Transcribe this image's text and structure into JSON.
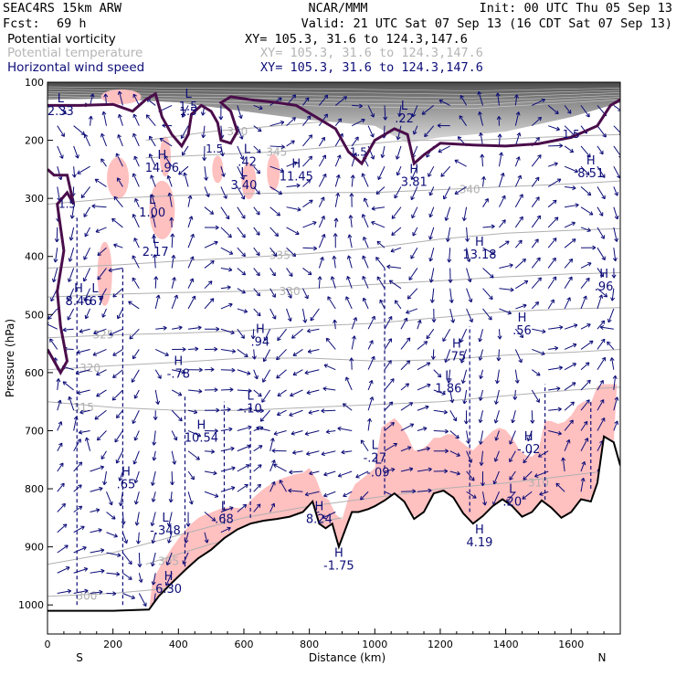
{
  "header": {
    "model": "SEAC4RS 15km ARW",
    "org": "NCAR/MMM",
    "init": "Init: 00 UTC Thu 05 Sep 13",
    "fcst_label": "Fcst:",
    "fcst_value": "69 h",
    "valid": "Valid: 21 UTC Sat 07 Sep 13 (16 CDT Sat 07 Sep 13)"
  },
  "legend": [
    {
      "name": "Potential vorticity",
      "xy": "XY= 105.3, 31.6 to 124.3,147.6",
      "color": "#000000"
    },
    {
      "name": "Potential temperature",
      "xy": "XY= 105.3, 31.6 to 124.3,147.6",
      "color": "#b5b5b5"
    },
    {
      "name": "Horizontal wind speed",
      "xy": "XY= 105.3, 31.6 to 124.3,147.6",
      "color": "#0d0d78"
    }
  ],
  "chart_data": {
    "type": "cross-section",
    "xlabel": "Distance (km)",
    "ylabel": "Pressure (hPa)",
    "xlim": [
      0,
      1750
    ],
    "ylim": [
      1050,
      100
    ],
    "x_ticks": [
      0,
      200,
      400,
      600,
      800,
      1000,
      1200,
      1400,
      1600
    ],
    "y_ticks": [
      100,
      200,
      300,
      400,
      500,
      600,
      700,
      800,
      900,
      1000
    ],
    "endpoints": {
      "left": "S",
      "right": "N"
    },
    "colors": {
      "pv": "#4a0d4a",
      "theta": "#b0b0b0",
      "wind": "#0d0d78",
      "shade": "#ffc0c0",
      "terrain": "#000000"
    },
    "terrain_surface": [
      [
        0,
        1010
      ],
      [
        100,
        1010
      ],
      [
        200,
        1010
      ],
      [
        310,
        1008
      ],
      [
        340,
        985
      ],
      [
        380,
        962
      ],
      [
        420,
        940
      ],
      [
        460,
        920
      ],
      [
        500,
        905
      ],
      [
        540,
        885
      ],
      [
        580,
        870
      ],
      [
        620,
        860
      ],
      [
        660,
        855
      ],
      [
        700,
        852
      ],
      [
        740,
        848
      ],
      [
        780,
        840
      ],
      [
        810,
        822
      ],
      [
        830,
        860
      ],
      [
        850,
        868
      ],
      [
        870,
        860
      ],
      [
        890,
        900
      ],
      [
        910,
        870
      ],
      [
        930,
        840
      ],
      [
        950,
        840
      ],
      [
        980,
        835
      ],
      [
        1000,
        830
      ],
      [
        1030,
        820
      ],
      [
        1060,
        808
      ],
      [
        1090,
        822
      ],
      [
        1120,
        852
      ],
      [
        1150,
        840
      ],
      [
        1180,
        808
      ],
      [
        1210,
        803
      ],
      [
        1240,
        815
      ],
      [
        1270,
        842
      ],
      [
        1300,
        860
      ],
      [
        1330,
        847
      ],
      [
        1360,
        830
      ],
      [
        1390,
        818
      ],
      [
        1420,
        830
      ],
      [
        1450,
        848
      ],
      [
        1480,
        840
      ],
      [
        1510,
        820
      ],
      [
        1540,
        833
      ],
      [
        1570,
        850
      ],
      [
        1600,
        840
      ],
      [
        1630,
        818
      ],
      [
        1660,
        822
      ],
      [
        1680,
        790
      ],
      [
        1700,
        710
      ],
      [
        1730,
        720
      ],
      [
        1750,
        760
      ]
    ],
    "pv_contour_value": "1.5",
    "theta_contours": [
      {
        "label": "300",
        "p": [
          [
            0,
            985
          ],
          [
            200,
            980
          ],
          [
            400,
            970
          ],
          [
            600,
            950
          ]
        ],
        "label_at": [
          120,
          985
        ]
      },
      {
        "label": "305",
        "p": [
          [
            300,
            930
          ],
          [
            500,
            895
          ],
          [
            700,
            870
          ],
          [
            900,
            850
          ]
        ],
        "label_at": [
          370,
          925
        ]
      },
      {
        "label": "310",
        "p": [
          [
            0,
            930
          ],
          [
            200,
            910
          ],
          [
            400,
            880
          ],
          [
            600,
            850
          ],
          [
            800,
            830
          ],
          [
            1000,
            815
          ],
          [
            1200,
            800
          ],
          [
            1400,
            790
          ],
          [
            1700,
            770
          ]
        ],
        "label_at": [
          1500,
          790
        ]
      },
      {
        "label": "315",
        "p": [
          [
            0,
            650
          ],
          [
            200,
            660
          ],
          [
            400,
            665
          ],
          [
            600,
            665
          ],
          [
            800,
            660
          ],
          [
            1000,
            655
          ],
          [
            1200,
            650
          ],
          [
            1400,
            640
          ],
          [
            1600,
            630
          ],
          [
            1750,
            625
          ]
        ],
        "label_at": [
          110,
          660
        ]
      },
      {
        "label": "320",
        "p": [
          [
            0,
            595
          ],
          [
            200,
            588
          ],
          [
            400,
            582
          ],
          [
            600,
            575
          ],
          [
            800,
            575
          ],
          [
            1000,
            580
          ],
          [
            1200,
            578
          ],
          [
            1400,
            570
          ],
          [
            1600,
            565
          ],
          [
            1750,
            560
          ]
        ],
        "label_at": [
          130,
          592
        ]
      },
      {
        "label": "325",
        "p": [
          [
            0,
            540
          ],
          [
            200,
            535
          ],
          [
            400,
            532
          ],
          [
            600,
            528
          ],
          [
            800,
            520
          ],
          [
            1000,
            515
          ],
          [
            1200,
            505
          ],
          [
            1400,
            495
          ],
          [
            1600,
            490
          ],
          [
            1750,
            488
          ]
        ],
        "label_at": [
          170,
          535
        ]
      },
      {
        "label": "330",
        "p": [
          [
            0,
            470
          ],
          [
            200,
            465
          ],
          [
            400,
            462
          ],
          [
            600,
            460
          ],
          [
            800,
            455
          ],
          [
            1000,
            448
          ],
          [
            1200,
            442
          ],
          [
            1400,
            435
          ],
          [
            1600,
            430
          ],
          [
            1750,
            428
          ]
        ],
        "label_at": [
          740,
          460
        ]
      },
      {
        "label": "335",
        "p": [
          [
            0,
            420
          ],
          [
            200,
            415
          ],
          [
            400,
            408
          ],
          [
            600,
            402
          ],
          [
            800,
            395
          ],
          [
            1000,
            385
          ],
          [
            1200,
            370
          ],
          [
            1400,
            360
          ],
          [
            1600,
            355
          ],
          [
            1750,
            352
          ]
        ],
        "label_at": [
          710,
          398
        ]
      },
      {
        "label": "340",
        "p": [
          [
            0,
            310
          ],
          [
            200,
            300
          ],
          [
            400,
            295
          ],
          [
            600,
            292
          ],
          [
            800,
            290
          ],
          [
            1000,
            290
          ],
          [
            1200,
            285
          ],
          [
            1400,
            280
          ],
          [
            1600,
            275
          ],
          [
            1750,
            270
          ]
        ],
        "label_at": [
          1290,
          285
        ]
      },
      {
        "label": "345",
        "p": [
          [
            300,
            230
          ],
          [
            500,
            225
          ],
          [
            700,
            220
          ],
          [
            900,
            210
          ],
          [
            1100,
            200
          ],
          [
            1300,
            200
          ],
          [
            1500,
            195
          ],
          [
            1750,
            190
          ]
        ],
        "label_at": [
          700,
          220
        ]
      },
      {
        "label": "350",
        "p": [
          [
            300,
            200
          ],
          [
            500,
            185
          ],
          [
            700,
            175
          ],
          [
            900,
            165
          ],
          [
            1100,
            155
          ]
        ],
        "label_at": [
          580,
          185
        ]
      }
    ],
    "markers": [
      {
        "type": "L",
        "value": "2.33",
        "x": 40,
        "p": 138
      },
      {
        "type": "L",
        "value": ".22",
        "x": 1090,
        "p": 150
      },
      {
        "type": "L",
        "value": "1.5",
        "x": 430,
        "p": 130
      },
      {
        "type": "H",
        "value": "14.96",
        "x": 350,
        "p": 235
      },
      {
        "type": "L",
        "value": ".42",
        "x": 610,
        "p": 225
      },
      {
        "type": "L",
        "value": "3.40",
        "x": 600,
        "p": 265
      },
      {
        "type": "H",
        "value": "11.45",
        "x": 760,
        "p": 250
      },
      {
        "type": "L",
        "value": "1.00",
        "x": 320,
        "p": 312
      },
      {
        "type": "L",
        "value": "2.17",
        "x": 330,
        "p": 380
      },
      {
        "type": "H",
        "value": "3.81",
        "x": 1120,
        "p": 260
      },
      {
        "type": "H",
        "value": "8.51",
        "x": 1660,
        "p": 245
      },
      {
        "type": "H",
        "value": "13.18",
        "x": 1320,
        "p": 385
      },
      {
        "type": "H",
        "value": ".96",
        "x": 1700,
        "p": 440
      },
      {
        "type": "H",
        "value": "8.46",
        "x": 95,
        "p": 465
      },
      {
        "type": "L",
        "value": ".67",
        "x": 145,
        "p": 465
      },
      {
        "type": "H",
        "value": ".94",
        "x": 650,
        "p": 535
      },
      {
        "type": "H",
        "value": ".56",
        "x": 1450,
        "p": 515
      },
      {
        "type": "H",
        "value": ".75",
        "x": 1250,
        "p": 560
      },
      {
        "type": "H",
        "value": "-.78",
        "x": 400,
        "p": 590
      },
      {
        "type": "L",
        "value": "1.86",
        "x": 1225,
        "p": 615
      },
      {
        "type": "L",
        "value": "-.10",
        "x": 620,
        "p": 650
      },
      {
        "type": "H",
        "value": "10.54",
        "x": 470,
        "p": 700
      },
      {
        "type": "L",
        "value": "-.27",
        "x": 1000,
        "p": 735
      },
      {
        "type": "L",
        "value": "-.09",
        "x": 1010,
        "p": 760
      },
      {
        "type": "H",
        "value": "-.02",
        "x": 1470,
        "p": 720
      },
      {
        "type": "H",
        "value": ".65",
        "x": 240,
        "p": 780
      },
      {
        "type": "H",
        "value": "8.24",
        "x": 830,
        "p": 840
      },
      {
        "type": "L",
        "value": ".20",
        "x": 1420,
        "p": 810
      },
      {
        "type": "L",
        "value": ".68",
        "x": 540,
        "p": 840
      },
      {
        "type": "L",
        "value": "-.348",
        "x": 360,
        "p": 860
      },
      {
        "type": "H",
        "value": "4.19",
        "x": 1320,
        "p": 880
      },
      {
        "type": "H",
        "value": "6.30",
        "x": 370,
        "p": 960
      },
      {
        "type": "H",
        "value": "-1.75",
        "x": 890,
        "p": 920
      }
    ]
  }
}
